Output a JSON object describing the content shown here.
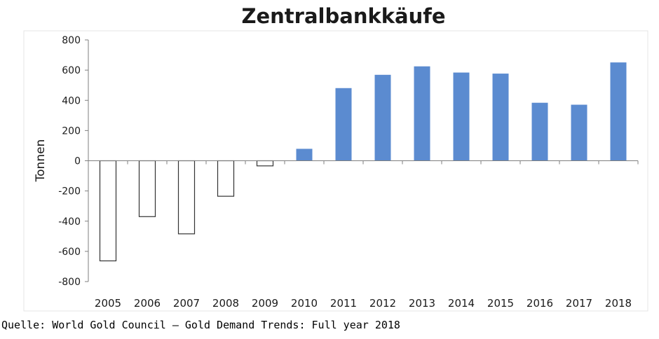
{
  "chart_data": {
    "type": "bar",
    "title": "Zentralbankkäufe",
    "xlabel": "",
    "ylabel": "Tonnen",
    "categories": [
      "2005",
      "2006",
      "2007",
      "2008",
      "2009",
      "2010",
      "2011",
      "2012",
      "2013",
      "2014",
      "2015",
      "2016",
      "2017",
      "2018"
    ],
    "values": [
      -663,
      -370,
      -484,
      -235,
      -34,
      79,
      481,
      569,
      625,
      584,
      577,
      384,
      371,
      651
    ],
    "ylim": [
      -800,
      800
    ],
    "yticks": [
      "800",
      "600",
      "400",
      "200",
      "0",
      "-200",
      "-400",
      "-600",
      "-800"
    ],
    "grid": false,
    "legend": "none",
    "colors": {
      "positive_fill": "#5B8BD0",
      "negative_fill": "#ffffff",
      "negative_stroke": "#333333",
      "axis": "#7f7f7f"
    }
  },
  "source_note": "Quelle: World Gold Council – Gold Demand Trends: Full year 2018"
}
